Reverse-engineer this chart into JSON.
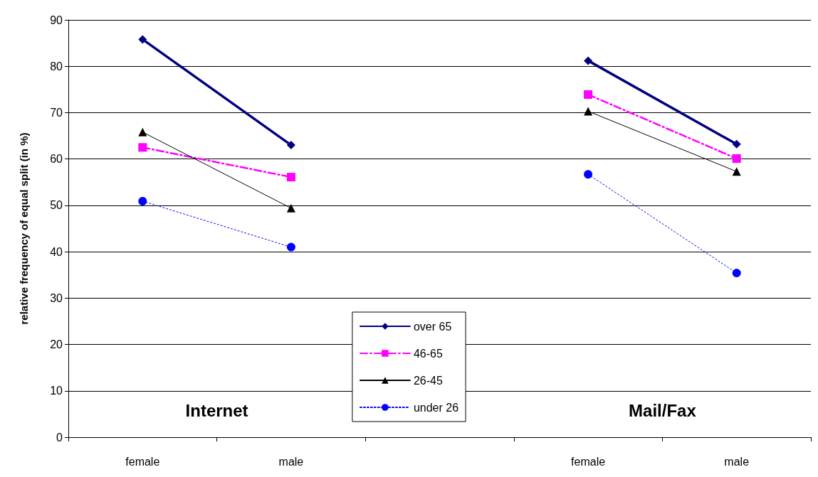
{
  "chart_data": {
    "type": "line",
    "ylabel": "relative frequency of equal split (in %)",
    "categories": [
      "female",
      "male",
      null,
      "female",
      "male"
    ],
    "annotations": [
      "Internet",
      "Mail/Fax"
    ],
    "series": [
      {
        "name": "over 65",
        "color": "#000080",
        "marker": "diamond",
        "line_style": "solid",
        "values": [
          85.8,
          63.0,
          null,
          81.2,
          63.2
        ]
      },
      {
        "name": "46-65",
        "color": "#ff00ff",
        "marker": "square",
        "line_style": "dashdot",
        "values": [
          62.5,
          56.1,
          null,
          73.9,
          60.1
        ]
      },
      {
        "name": "26-45",
        "color": "#000000",
        "marker": "triangle",
        "line_style": "solid",
        "values": [
          65.8,
          49.4,
          null,
          70.3,
          57.3
        ]
      },
      {
        "name": "under 26",
        "color": "#0000ff",
        "marker": "circle",
        "line_style": "dotted",
        "values": [
          50.9,
          41.0,
          null,
          56.7,
          35.4
        ]
      }
    ],
    "ylim": [
      0,
      90
    ],
    "yticks": [
      0,
      10,
      20,
      30,
      40,
      50,
      60,
      70,
      80,
      90
    ],
    "grid": "y",
    "legend": "bottom"
  }
}
